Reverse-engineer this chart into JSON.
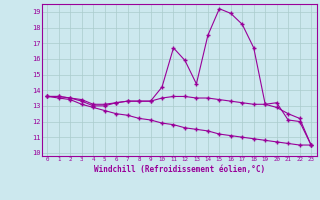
{
  "xlabel": "Windchill (Refroidissement éolien,°C)",
  "bg_color": "#cce8ee",
  "grid_color": "#aacccc",
  "line_color": "#990099",
  "x_values": [
    0,
    1,
    2,
    3,
    4,
    5,
    6,
    7,
    8,
    9,
    10,
    11,
    12,
    13,
    14,
    15,
    16,
    17,
    18,
    19,
    20,
    21,
    22,
    23
  ],
  "line1": [
    13.6,
    13.6,
    13.5,
    13.3,
    13.0,
    13.0,
    13.2,
    13.3,
    13.3,
    13.3,
    14.2,
    16.7,
    15.9,
    14.4,
    17.5,
    19.2,
    18.9,
    18.2,
    16.7,
    13.1,
    13.2,
    12.1,
    12.0,
    10.5
  ],
  "line2": [
    13.6,
    13.6,
    13.5,
    13.4,
    13.1,
    13.1,
    13.2,
    13.3,
    13.3,
    13.3,
    13.5,
    13.6,
    13.6,
    13.5,
    13.5,
    13.4,
    13.3,
    13.2,
    13.1,
    13.1,
    12.9,
    12.5,
    12.2,
    10.5
  ],
  "line3": [
    13.6,
    13.5,
    13.4,
    13.1,
    12.9,
    12.7,
    12.5,
    12.4,
    12.2,
    12.1,
    11.9,
    11.8,
    11.6,
    11.5,
    11.4,
    11.2,
    11.1,
    11.0,
    10.9,
    10.8,
    10.7,
    10.6,
    10.5,
    10.5
  ],
  "ylim": [
    9.8,
    19.5
  ],
  "yticks": [
    10,
    11,
    12,
    13,
    14,
    15,
    16,
    17,
    18,
    19
  ],
  "xlim": [
    -0.5,
    23.5
  ],
  "xtick_labels": [
    "0",
    "1",
    "2",
    "3",
    "4",
    "5",
    "6",
    "7",
    "8",
    "9",
    "10",
    "11",
    "12",
    "13",
    "14",
    "15",
    "16",
    "17",
    "18",
    "19",
    "20",
    "21",
    "22",
    "23"
  ]
}
